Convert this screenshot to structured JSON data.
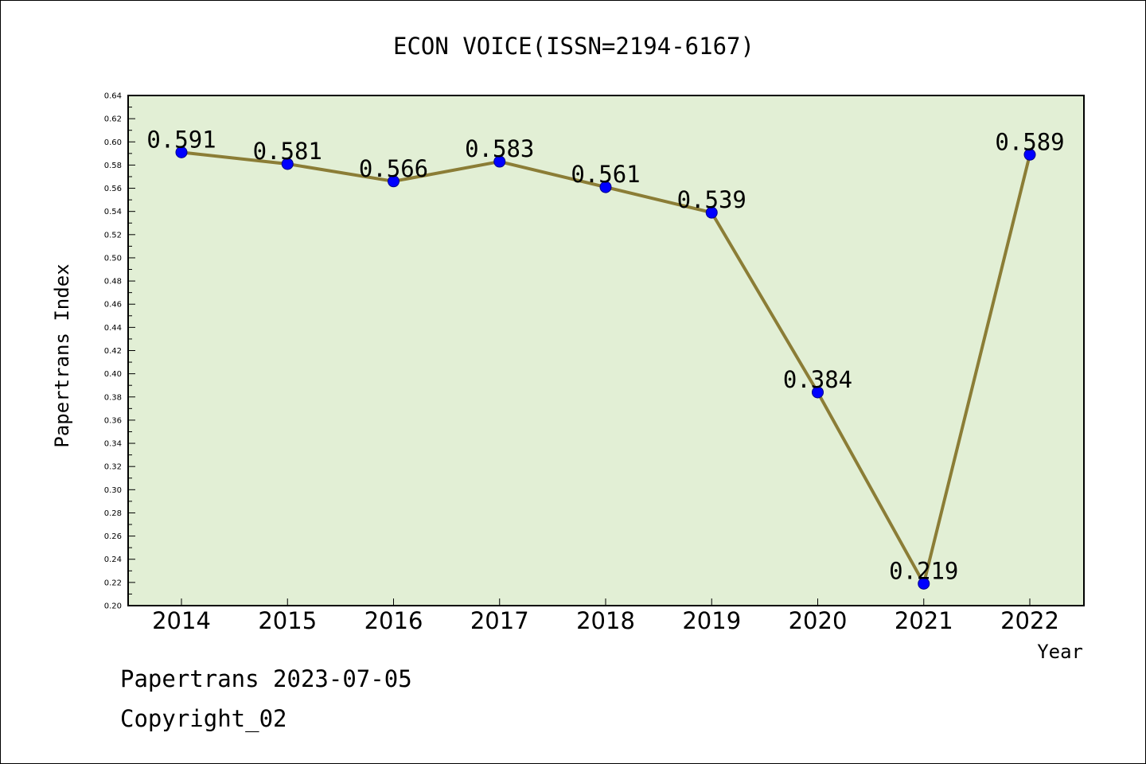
{
  "chart_data": {
    "type": "line",
    "title": "ECON VOICE(ISSN=2194-6167)",
    "xlabel": "Year",
    "ylabel": "Papertrans Index",
    "categories": [
      "2014",
      "2015",
      "2016",
      "2017",
      "2018",
      "2019",
      "2020",
      "2021",
      "2022"
    ],
    "series": [
      {
        "values": [
          0.591,
          0.581,
          0.566,
          0.583,
          0.561,
          0.539,
          0.384,
          0.219,
          0.589
        ],
        "labels": [
          "0.591",
          "0.581",
          "0.566",
          "0.583",
          "0.561",
          "0.539",
          "0.384",
          "0.219",
          "0.589"
        ],
        "line_color": "#8b7d36",
        "marker_color": "#0000ff"
      }
    ],
    "ylim": [
      0.2,
      0.64
    ],
    "yticks": [
      "0.20",
      "0.22",
      "0.24",
      "0.26",
      "0.28",
      "0.30",
      "0.32",
      "0.34",
      "0.36",
      "0.38",
      "0.40",
      "0.42",
      "0.44",
      "0.46",
      "0.48",
      "0.50",
      "0.52",
      "0.54",
      "0.56",
      "0.58",
      "0.60",
      "0.62",
      "0.64"
    ],
    "grid": false,
    "plot_background": "#e2efd5"
  },
  "footer": {
    "date_line": "Papertrans 2023-07-05",
    "copyright": "Copyright_02"
  }
}
